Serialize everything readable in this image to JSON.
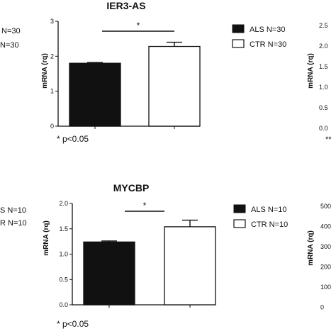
{
  "chart_data": [
    {
      "type": "bar",
      "title": "IER3-AS",
      "ylabel": "mRNA (rq)",
      "ylim": [
        0,
        3
      ],
      "yticks": [
        "0",
        "1",
        "2",
        "3"
      ],
      "categories": [
        "ALS",
        "CTR"
      ],
      "values": [
        1.8,
        2.28
      ],
      "errors": [
        0.02,
        0.12
      ],
      "bar_colors": [
        "#111111",
        "#ffffff"
      ],
      "legend": [
        "ALS N=30",
        "CTR N=30"
      ],
      "legend_placement": "right",
      "significance": "*",
      "note": "* p<0.05"
    },
    {
      "type": "bar",
      "title": "MYCBP",
      "ylabel": "mRNA (rq)",
      "ylim": [
        0,
        2
      ],
      "yticks": [
        "0.0",
        "0.5",
        "1.0",
        "1.5",
        "2.0"
      ],
      "categories": [
        "ALS",
        "CTR"
      ],
      "values": [
        1.24,
        1.54
      ],
      "errors": [
        0.02,
        0.13
      ],
      "bar_colors": [
        "#111111",
        "#ffffff"
      ],
      "legend": [
        "ALS N=10",
        "CTR N=10"
      ],
      "legend_placement": "right",
      "significance": "*",
      "note": "* p<0.05"
    }
  ],
  "fragments": {
    "left_top_a": "N=30",
    "left_top_b": "N=30",
    "left_bottom_a": "S N=10",
    "left_bottom_b": "R N=10",
    "right_top_ylabel": "mRNA (rq)",
    "right_top_ticks": [
      "2.5",
      "2.0",
      "1.5",
      "1.0",
      "0.5",
      "0.0"
    ],
    "right_top_note": "**",
    "right_bottom_ylabel": "mRNA (rq)",
    "right_bottom_ticks": [
      "500",
      "400",
      "300",
      "200",
      "100",
      "0"
    ]
  }
}
